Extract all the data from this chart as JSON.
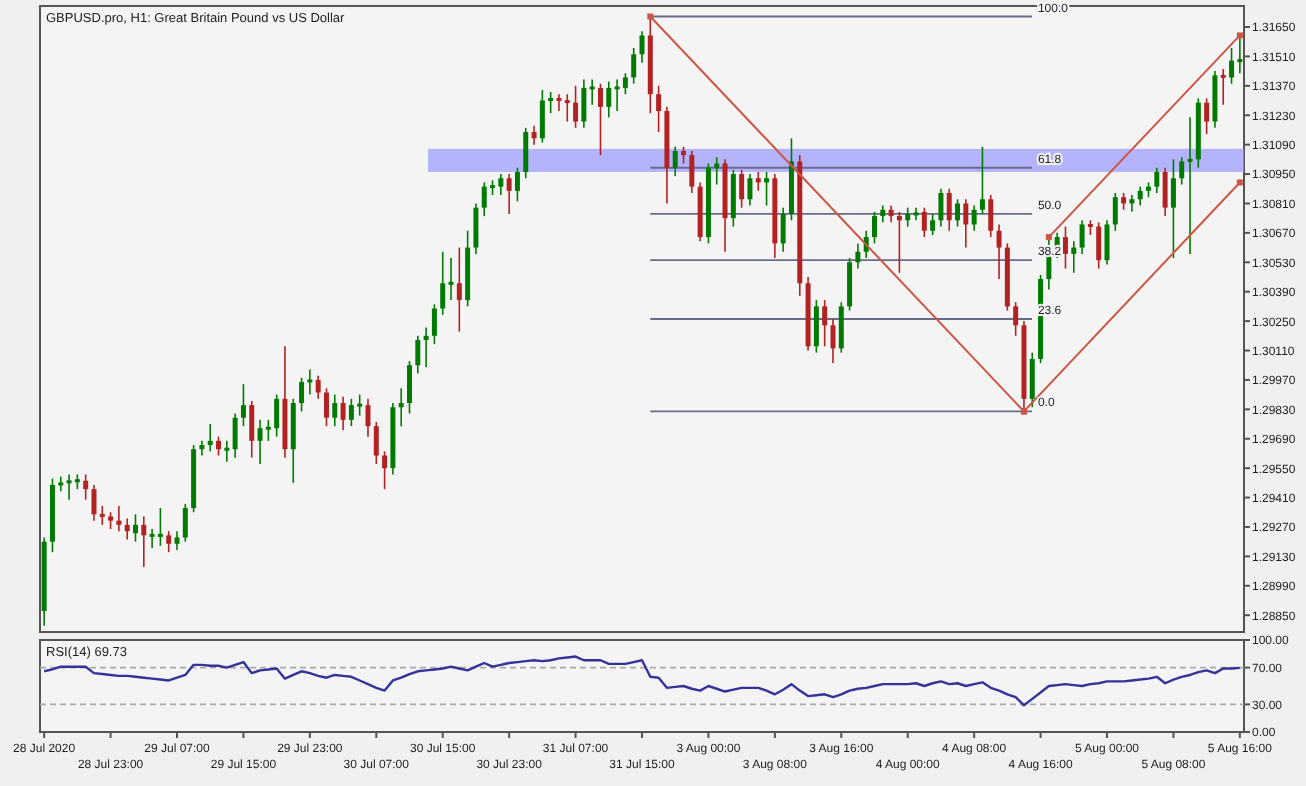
{
  "chart_data": [
    {
      "type": "candlestick",
      "title": "GBPUSD.pro, H1: Great Britain Pound vs US Dollar",
      "tick_labels": "y",
      "ylim": [
        1.2877,
        1.3175
      ],
      "categories": [
        null,
        null,
        null,
        null,
        null,
        null,
        null,
        null,
        null,
        null,
        null,
        null,
        null,
        null,
        null,
        null,
        null,
        null,
        null,
        null,
        null,
        null,
        null,
        null,
        null,
        null,
        null,
        null,
        null,
        null,
        null,
        null,
        null,
        null,
        null,
        null,
        null,
        null,
        null,
        null,
        null,
        null,
        null,
        null,
        null,
        null,
        null,
        null,
        null,
        null,
        null,
        null,
        null,
        null,
        null,
        null,
        null,
        null,
        null,
        null,
        null,
        null,
        null,
        null,
        null,
        null,
        null,
        null,
        null,
        null,
        null,
        null,
        null,
        null,
        null,
        null,
        null,
        null,
        null,
        null,
        null,
        null,
        null,
        null,
        null,
        null,
        null,
        null,
        null,
        null,
        null,
        null,
        null,
        null,
        null,
        null,
        null,
        null,
        null,
        null,
        null,
        null,
        null,
        null,
        null,
        null,
        null,
        null,
        null,
        null,
        null,
        null,
        null,
        null,
        null,
        null,
        null,
        null,
        null,
        null,
        null,
        null,
        null,
        null,
        null,
        null,
        null,
        null,
        null,
        null,
        null,
        null,
        null,
        null,
        null,
        null,
        null,
        null,
        null,
        null,
        null,
        null,
        null,
        null,
        null
      ],
      "yticks": [
        {
          "value": 1.3165,
          "label": "1.31650"
        },
        {
          "value": 1.3151,
          "label": "1.31510"
        },
        {
          "value": 1.3137,
          "label": "1.31370"
        },
        {
          "value": 1.3123,
          "label": "1.31230"
        },
        {
          "value": 1.3109,
          "label": "1.31090"
        },
        {
          "value": 1.3095,
          "label": "1.30950"
        },
        {
          "value": 1.3081,
          "label": "1.30810"
        },
        {
          "value": 1.3067,
          "label": "1.30670"
        },
        {
          "value": 1.3053,
          "label": "1.30530"
        },
        {
          "value": 1.3039,
          "label": "1.30390"
        },
        {
          "value": 1.3025,
          "label": "1.30250"
        },
        {
          "value": 1.3011,
          "label": "1.30110"
        },
        {
          "value": 1.2997,
          "label": "1.29970"
        },
        {
          "value": 1.2983,
          "label": "1.29830"
        },
        {
          "value": 1.2969,
          "label": "1.29690"
        },
        {
          "value": 1.2955,
          "label": "1.29550"
        },
        {
          "value": 1.2941,
          "label": "1.29410"
        },
        {
          "value": 1.2927,
          "label": "1.29270"
        },
        {
          "value": 1.2913,
          "label": "1.29130"
        },
        {
          "value": 1.2899,
          "label": "1.28990"
        },
        {
          "value": 1.2885,
          "label": "1.28850"
        }
      ],
      "bands": [
        {
          "axis": "y",
          "from": 1.3096,
          "to": 1.3107,
          "color": "#9999ff"
        }
      ],
      "ref_lines": [
        {
          "axis": "y",
          "value": 1.317,
          "color": "#6a6a8a"
        },
        {
          "axis": "y",
          "value": 1.3098,
          "color": "#6a6a8a"
        },
        {
          "axis": "y",
          "value": 1.3076,
          "color": "#6a6a8a"
        },
        {
          "axis": "y",
          "value": 1.3054,
          "color": "#6a6a8a"
        },
        {
          "axis": "y",
          "value": 1.3026,
          "color": "#6a6a8a"
        },
        {
          "axis": "y",
          "value": 1.2982,
          "color": "#6a6a8a"
        }
      ],
      "annotations": [
        "100.0",
        "61.8",
        "50.0",
        "38.2",
        "23.6",
        "0.0"
      ],
      "series": [
        {
          "colors": [
            "#007a00",
            "#007a00",
            "#007a00",
            "#007a00",
            "#007a00",
            "#b22222",
            "#b22222",
            "#b22222",
            "#b22222",
            "#b22222",
            "#b22222",
            "#007a00",
            "#b22222",
            "#007a00",
            "#007a00",
            "#b22222",
            "#007a00",
            "#007a00",
            "#007a00",
            "#007a00",
            "#007a00",
            "#b22222",
            "#007a00",
            "#007a00",
            "#007a00",
            "#b22222",
            "#007a00",
            "#007a00",
            "#007a00",
            "#b22222",
            "#007a00",
            "#007a00",
            "#007a00",
            "#b22222",
            "#b22222",
            "#007a00",
            "#b22222",
            "#007a00",
            "#007a00",
            "#b22222",
            "#b22222",
            "#b22222",
            "#007a00",
            "#007a00",
            "#007a00",
            "#007a00",
            "#007a00",
            "#007a00",
            "#007a00",
            "#007a00",
            "#b22222",
            "#007a00",
            "#007a00",
            "#007a00",
            "#007a00",
            "#007a00",
            "#b22222",
            "#007a00",
            "#007a00",
            "#b22222",
            "#007a00",
            "#007a00",
            "#b22222",
            "#b22222",
            "#b22222",
            "#007a00",
            "#007a00",
            "#b22222",
            "#007a00",
            "#007a00",
            "#007a00",
            "#007a00",
            "#007a00",
            "#b22222",
            "#b22222",
            "#b22222",
            "#007a00",
            "#b22222",
            "#b22222",
            "#b22222",
            "#007a00",
            "#007a00",
            "#b22222",
            "#007a00",
            "#b22222",
            "#007a00",
            "#b22222",
            "#007a00",
            "#b22222",
            "#007a00",
            "#007a00",
            "#b22222",
            "#b22222",
            "#007a00",
            "#b22222",
            "#b22222",
            "#007a00",
            "#007a00",
            "#007a00",
            "#007a00",
            "#007a00",
            "#007a00",
            "#b22222",
            "#b22222",
            "#007a00",
            "#007a00",
            "#b22222",
            "#007a00",
            "#007a00",
            "#b22222",
            "#007a00",
            "#b22222",
            "#007a00",
            "#007a00",
            "#b22222",
            "#b22222",
            "#b22222",
            "#b22222",
            "#b22222",
            "#007a00",
            "#007a00",
            "#007a00",
            "#007a00",
            "#b22222",
            "#007a00",
            "#007a00",
            "#b22222",
            "#b22222",
            "#007a00",
            "#007a00",
            "#b22222",
            "#007a00",
            "#007a00",
            "#007a00",
            "#007a00",
            "#b22222",
            "#007a00",
            "#007a00",
            "#007a00",
            "#007a00",
            "#b22222",
            "#007a00",
            "#b22222",
            "#007a00",
            "#007a00"
          ],
          "ohlc": [
            [
              1.2887,
              1.2922,
              1.288,
              1.292
            ],
            [
              1.292,
              1.295,
              1.2915,
              1.2947
            ],
            [
              1.2947,
              1.2951,
              1.2944,
              1.2948
            ],
            [
              1.2948,
              1.2952,
              1.294,
              1.2949
            ],
            [
              1.2949,
              1.2952,
              1.2945,
              1.2949
            ],
            [
              1.2949,
              1.2952,
              1.294,
              1.2945
            ],
            [
              1.2945,
              1.2947,
              1.293,
              1.2933
            ],
            [
              1.2933,
              1.2937,
              1.2928,
              1.2932
            ],
            [
              1.2932,
              1.2934,
              1.2926,
              1.293
            ],
            [
              1.293,
              1.2937,
              1.2925,
              1.2928
            ],
            [
              1.2928,
              1.2931,
              1.2921,
              1.2925
            ],
            [
              1.2924,
              1.2933,
              1.292,
              1.2928
            ],
            [
              1.2928,
              1.2932,
              1.2908,
              1.2923
            ],
            [
              1.2923,
              1.2926,
              1.2917,
              1.2923
            ],
            [
              1.2923,
              1.2936,
              1.2918,
              1.2923
            ],
            [
              1.2923,
              1.2925,
              1.2915,
              1.2919
            ],
            [
              1.2919,
              1.2925,
              1.2916,
              1.2922
            ],
            [
              1.2922,
              1.2938,
              1.292,
              1.2936
            ],
            [
              1.2936,
              1.2966,
              1.2934,
              1.2964
            ],
            [
              1.2964,
              1.2968,
              1.2961,
              1.2966
            ],
            [
              1.2966,
              1.2976,
              1.2963,
              1.2968
            ],
            [
              1.2968,
              1.297,
              1.2961,
              1.2964
            ],
            [
              1.2964,
              1.2968,
              1.2958,
              1.2964
            ],
            [
              1.2964,
              1.2981,
              1.296,
              1.2979
            ],
            [
              1.2979,
              1.2995,
              1.2975,
              1.2985
            ],
            [
              1.2985,
              1.2987,
              1.296,
              1.2968
            ],
            [
              1.2968,
              1.2978,
              1.2957,
              1.2974
            ],
            [
              1.2974,
              1.2978,
              1.2968,
              1.2974
            ],
            [
              1.2974,
              1.299,
              1.297,
              1.2988
            ],
            [
              1.2988,
              1.3013,
              1.296,
              1.2964
            ],
            [
              1.2964,
              1.2988,
              1.2948,
              1.2986
            ],
            [
              1.2986,
              1.2998,
              1.2982,
              1.2996
            ],
            [
              1.2996,
              1.3002,
              1.299,
              1.2997
            ],
            [
              1.2997,
              1.2999,
              1.2988,
              1.2991
            ],
            [
              1.2991,
              1.2993,
              1.2975,
              1.2979
            ],
            [
              1.2979,
              1.299,
              1.2975,
              1.2986
            ],
            [
              1.2986,
              1.2989,
              1.2973,
              1.2978
            ],
            [
              1.2978,
              1.2988,
              1.2975,
              1.2985
            ],
            [
              1.2985,
              1.299,
              1.298,
              1.2985
            ],
            [
              1.2985,
              1.2988,
              1.297,
              1.2975
            ],
            [
              1.2975,
              1.2977,
              1.2957,
              1.2961
            ],
            [
              1.2961,
              1.2963,
              1.2945,
              1.2955
            ],
            [
              1.2955,
              1.2986,
              1.2952,
              1.2984
            ],
            [
              1.2984,
              1.2993,
              1.2975,
              1.2986
            ],
            [
              1.2986,
              1.3006,
              1.2981,
              1.3004
            ],
            [
              1.3004,
              1.3018,
              1.3,
              1.3016
            ],
            [
              1.3016,
              1.3022,
              1.3003,
              1.3018
            ],
            [
              1.3018,
              1.3033,
              1.3014,
              1.3031
            ],
            [
              1.3031,
              1.3058,
              1.3028,
              1.3043
            ],
            [
              1.3043,
              1.3055,
              1.3035,
              1.3043
            ],
            [
              1.3043,
              1.306,
              1.302,
              1.3035
            ],
            [
              1.3035,
              1.3068,
              1.3032,
              1.306
            ],
            [
              1.306,
              1.3081,
              1.3057,
              1.3079
            ],
            [
              1.3079,
              1.3091,
              1.3075,
              1.3089
            ],
            [
              1.3089,
              1.3092,
              1.3085,
              1.3089
            ],
            [
              1.3089,
              1.3095,
              1.3085,
              1.3093
            ],
            [
              1.3093,
              1.3095,
              1.3076,
              1.3087
            ],
            [
              1.3087,
              1.3098,
              1.3082,
              1.3096
            ],
            [
              1.3096,
              1.3117,
              1.3093,
              1.3115
            ],
            [
              1.3115,
              1.3118,
              1.3109,
              1.3112
            ],
            [
              1.3112,
              1.3135,
              1.311,
              1.313
            ],
            [
              1.313,
              1.3134,
              1.3124,
              1.3131
            ],
            [
              1.3131,
              1.3133,
              1.3125,
              1.313
            ],
            [
              1.313,
              1.3133,
              1.312,
              1.3129
            ],
            [
              1.3129,
              1.3137,
              1.3117,
              1.312
            ],
            [
              1.312,
              1.314,
              1.3117,
              1.3136
            ],
            [
              1.3136,
              1.314,
              1.3128,
              1.3136
            ],
            [
              1.3136,
              1.3138,
              1.3104,
              1.3127
            ],
            [
              1.3127,
              1.3139,
              1.3122,
              1.3136
            ],
            [
              1.3136,
              1.314,
              1.3125,
              1.3136
            ],
            [
              1.3136,
              1.3143,
              1.3133,
              1.3141
            ],
            [
              1.3141,
              1.3155,
              1.3138,
              1.3152
            ],
            [
              1.3152,
              1.3163,
              1.3148,
              1.3161
            ],
            [
              1.3161,
              1.317,
              1.3124,
              1.3133
            ],
            [
              1.3133,
              1.3137,
              1.3115,
              1.3125
            ],
            [
              1.3125,
              1.3127,
              1.3081,
              1.3098
            ],
            [
              1.3098,
              1.3108,
              1.3094,
              1.3106
            ],
            [
              1.3106,
              1.3108,
              1.31,
              1.3104
            ],
            [
              1.3104,
              1.3106,
              1.3086,
              1.3089
            ],
            [
              1.3089,
              1.3091,
              1.3063,
              1.3065
            ],
            [
              1.3065,
              1.31,
              1.3062,
              1.3098
            ],
            [
              1.3098,
              1.3103,
              1.309,
              1.31
            ],
            [
              1.31,
              1.3102,
              1.3058,
              1.3074
            ],
            [
              1.3074,
              1.3097,
              1.307,
              1.3095
            ],
            [
              1.3095,
              1.3097,
              1.3079,
              1.3083
            ],
            [
              1.3083,
              1.3095,
              1.308,
              1.3093
            ],
            [
              1.3093,
              1.3096,
              1.3087,
              1.3091
            ],
            [
              1.3091,
              1.3096,
              1.308,
              1.3093
            ],
            [
              1.3093,
              1.3095,
              1.3055,
              1.3062
            ],
            [
              1.3062,
              1.3079,
              1.3058,
              1.3076
            ],
            [
              1.3076,
              1.3112,
              1.3073,
              1.3101
            ],
            [
              1.3101,
              1.3104,
              1.3037,
              1.3043
            ],
            [
              1.3043,
              1.3046,
              1.3011,
              1.3013
            ],
            [
              1.3013,
              1.3035,
              1.301,
              1.3032
            ],
            [
              1.3032,
              1.3035,
              1.3013,
              1.3023
            ],
            [
              1.3023,
              1.3026,
              1.3005,
              1.3012
            ],
            [
              1.3012,
              1.3034,
              1.301,
              1.3032
            ],
            [
              1.3032,
              1.3055,
              1.303,
              1.3053
            ],
            [
              1.3053,
              1.3062,
              1.305,
              1.3058
            ],
            [
              1.3058,
              1.3068,
              1.3055,
              1.3065
            ],
            [
              1.3065,
              1.3077,
              1.3062,
              1.3075
            ],
            [
              1.3075,
              1.308,
              1.3072,
              1.3078
            ],
            [
              1.3078,
              1.308,
              1.3072,
              1.3075
            ],
            [
              1.3075,
              1.3077,
              1.3048,
              1.3073
            ],
            [
              1.3073,
              1.3079,
              1.307,
              1.3076
            ],
            [
              1.3076,
              1.3079,
              1.3073,
              1.3076
            ],
            [
              1.3077,
              1.3079,
              1.3065,
              1.3068
            ],
            [
              1.3068,
              1.3076,
              1.3066,
              1.3073
            ],
            [
              1.3073,
              1.3088,
              1.307,
              1.3086
            ],
            [
              1.3086,
              1.3088,
              1.3068,
              1.3073
            ],
            [
              1.3073,
              1.3083,
              1.307,
              1.3081
            ],
            [
              1.3081,
              1.3083,
              1.306,
              1.3071
            ],
            [
              1.3071,
              1.308,
              1.3068,
              1.3078
            ],
            [
              1.3078,
              1.3108,
              1.3076,
              1.3083
            ],
            [
              1.3083,
              1.3085,
              1.3065,
              1.3068
            ],
            [
              1.3068,
              1.3071,
              1.3045,
              1.306
            ],
            [
              1.306,
              1.3062,
              1.303,
              1.3032
            ],
            [
              1.3032,
              1.3034,
              1.3018,
              1.3023
            ],
            [
              1.3023,
              1.3025,
              1.2982,
              1.2988
            ],
            [
              1.2988,
              1.301,
              1.2984,
              1.3007
            ],
            [
              1.3007,
              1.3047,
              1.3005,
              1.3045
            ],
            [
              1.3045,
              1.3065,
              1.304,
              1.3058
            ],
            [
              1.3058,
              1.3067,
              1.3055,
              1.3065
            ],
            [
              1.3065,
              1.307,
              1.305,
              1.3057
            ],
            [
              1.3057,
              1.3063,
              1.3048,
              1.306
            ],
            [
              1.306,
              1.3073,
              1.3057,
              1.3071
            ],
            [
              1.3071,
              1.3073,
              1.3066,
              1.307
            ],
            [
              1.307,
              1.3072,
              1.305,
              1.3054
            ],
            [
              1.3054,
              1.3073,
              1.3052,
              1.3071
            ],
            [
              1.3071,
              1.3086,
              1.3068,
              1.3084
            ],
            [
              1.3084,
              1.3086,
              1.3078,
              1.3081
            ],
            [
              1.3081,
              1.3085,
              1.3077,
              1.3083
            ],
            [
              1.3083,
              1.3089,
              1.308,
              1.3087
            ],
            [
              1.3087,
              1.3091,
              1.3084,
              1.3089
            ],
            [
              1.3089,
              1.3098,
              1.3086,
              1.3096
            ],
            [
              1.3096,
              1.3098,
              1.3075,
              1.3079
            ],
            [
              1.3079,
              1.3102,
              1.3055,
              1.3093
            ],
            [
              1.3093,
              1.3103,
              1.309,
              1.3101
            ],
            [
              1.3101,
              1.3122,
              1.3057,
              1.3102
            ],
            [
              1.3102,
              1.3131,
              1.3098,
              1.3129
            ],
            [
              1.3129,
              1.3131,
              1.3114,
              1.312
            ],
            [
              1.312,
              1.3144,
              1.3117,
              1.3142
            ],
            [
              1.3142,
              1.3145,
              1.3128,
              1.3141
            ],
            [
              1.3141,
              1.3155,
              1.3138,
              1.3149
            ],
            [
              1.3149,
              1.316,
              1.3143,
              1.3149
            ]
          ]
        },
        {
          "type": "line",
          "color": "#cc5544",
          "marker": "square",
          "values": [
            null,
            null,
            null,
            null,
            null,
            null,
            null,
            null,
            null,
            null,
            null,
            null,
            null,
            null,
            null,
            null,
            null,
            null,
            null,
            null,
            null,
            null,
            null,
            null,
            null,
            null,
            null,
            null,
            null,
            null,
            null,
            null,
            null,
            null,
            null,
            null,
            null,
            null,
            null,
            null,
            null,
            null,
            null,
            null,
            null,
            null,
            null,
            null,
            null,
            null,
            null,
            null,
            null,
            null,
            null,
            null,
            null,
            null,
            null,
            null,
            null,
            null,
            null,
            null,
            null,
            null,
            null,
            null,
            null,
            null,
            null,
            null,
            null,
            1.317,
            null,
            null,
            null,
            null,
            null,
            null,
            null,
            null,
            null,
            null,
            null,
            null,
            null,
            null,
            null,
            null,
            null,
            null,
            null,
            null,
            null,
            null,
            null,
            null,
            null,
            null,
            null,
            null,
            null,
            null,
            null,
            null,
            null,
            null,
            null,
            null,
            null,
            null,
            null,
            null,
            null,
            null,
            null,
            null,
            1.2982,
            null,
            null,
            null,
            null,
            null,
            null,
            null,
            null,
            null,
            null,
            null,
            null,
            null,
            null,
            null,
            null,
            null,
            null,
            null,
            null,
            null,
            null,
            null,
            null,
            null,
            null
          ]
        },
        {
          "type": "line",
          "color": "#cc5544",
          "marker": "square",
          "values": [
            null,
            null,
            null,
            null,
            null,
            null,
            null,
            null,
            null,
            null,
            null,
            null,
            null,
            null,
            null,
            null,
            null,
            null,
            null,
            null,
            null,
            null,
            null,
            null,
            null,
            null,
            null,
            null,
            null,
            null,
            null,
            null,
            null,
            null,
            null,
            null,
            null,
            null,
            null,
            null,
            null,
            null,
            null,
            null,
            null,
            null,
            null,
            null,
            null,
            null,
            null,
            null,
            null,
            null,
            null,
            null,
            null,
            null,
            null,
            null,
            null,
            null,
            null,
            null,
            null,
            null,
            null,
            null,
            null,
            null,
            null,
            null,
            null,
            null,
            null,
            null,
            null,
            null,
            null,
            null,
            null,
            null,
            null,
            null,
            null,
            null,
            null,
            null,
            null,
            null,
            null,
            null,
            null,
            null,
            null,
            null,
            null,
            null,
            null,
            null,
            null,
            null,
            null,
            null,
            null,
            null,
            null,
            null,
            null,
            null,
            null,
            null,
            null,
            null,
            null,
            null,
            null,
            null,
            null,
            null,
            null,
            1.3065,
            null,
            null,
            null,
            null,
            null,
            null,
            null,
            null,
            null,
            null,
            null,
            null,
            null,
            null,
            null,
            null,
            null,
            null,
            null,
            null,
            null,
            null,
            1.3161
          ]
        },
        {
          "type": "line",
          "color": "#cc5544",
          "marker": "square",
          "values": [
            null,
            null,
            null,
            null,
            null,
            null,
            null,
            null,
            null,
            null,
            null,
            null,
            null,
            null,
            null,
            null,
            null,
            null,
            null,
            null,
            null,
            null,
            null,
            null,
            null,
            null,
            null,
            null,
            null,
            null,
            null,
            null,
            null,
            null,
            null,
            null,
            null,
            null,
            null,
            null,
            null,
            null,
            null,
            null,
            null,
            null,
            null,
            null,
            null,
            null,
            null,
            null,
            null,
            null,
            null,
            null,
            null,
            null,
            null,
            null,
            null,
            null,
            null,
            null,
            null,
            null,
            null,
            null,
            null,
            null,
            null,
            null,
            null,
            null,
            null,
            null,
            null,
            null,
            null,
            null,
            null,
            null,
            null,
            null,
            null,
            null,
            null,
            null,
            null,
            null,
            null,
            null,
            null,
            null,
            null,
            null,
            null,
            null,
            null,
            null,
            null,
            null,
            null,
            null,
            null,
            null,
            null,
            null,
            null,
            null,
            null,
            null,
            null,
            null,
            null,
            null,
            null,
            null,
            1.2982,
            null,
            null,
            null,
            null,
            null,
            null,
            null,
            null,
            null,
            null,
            null,
            null,
            null,
            null,
            null,
            null,
            null,
            null,
            null,
            null,
            null,
            null,
            null,
            null,
            null,
            1.3091
          ]
        }
      ]
    },
    {
      "type": "line",
      "title": "RSI(14) 69.73",
      "ylim": [
        0,
        100
      ],
      "categories": [
        "28 Jul 2020",
        null,
        null,
        null,
        null,
        null,
        null,
        null,
        "28 Jul 23:00",
        null,
        null,
        null,
        null,
        null,
        null,
        null,
        "29 Jul 07:00",
        null,
        null,
        null,
        null,
        null,
        null,
        null,
        "29 Jul 15:00",
        null,
        null,
        null,
        null,
        null,
        null,
        null,
        "29 Jul 23:00",
        null,
        null,
        null,
        null,
        null,
        null,
        null,
        "30 Jul 07:00",
        null,
        null,
        null,
        null,
        null,
        null,
        null,
        "30 Jul 15:00",
        null,
        null,
        null,
        null,
        null,
        null,
        null,
        "30 Jul 23:00",
        null,
        null,
        null,
        null,
        null,
        null,
        null,
        "31 Jul 07:00",
        null,
        null,
        null,
        null,
        null,
        null,
        null,
        "31 Jul 15:00",
        null,
        null,
        null,
        null,
        null,
        null,
        null,
        "3 Aug 00:00",
        null,
        null,
        null,
        null,
        null,
        null,
        null,
        "3 Aug 08:00",
        null,
        null,
        null,
        null,
        null,
        null,
        null,
        "3 Aug 16:00",
        null,
        null,
        null,
        null,
        null,
        null,
        null,
        "4 Aug 00:00",
        null,
        null,
        null,
        null,
        null,
        null,
        null,
        "4 Aug 08:00",
        null,
        null,
        null,
        null,
        null,
        null,
        null,
        "4 Aug 16:00",
        null,
        null,
        null,
        null,
        null,
        null,
        null,
        "5 Aug 00:00",
        null,
        null,
        null,
        null,
        null,
        null,
        null,
        "5 Aug 08:00",
        null,
        null,
        null,
        null,
        null,
        null,
        null,
        "5 Aug 16:00"
      ],
      "yticks": [
        {
          "value": 100,
          "label": "100.00"
        },
        {
          "value": 70,
          "label": "70.00"
        },
        {
          "value": 30,
          "label": "30.00"
        },
        {
          "value": 0,
          "label": "0.00"
        }
      ],
      "ref_lines": [
        {
          "axis": "y",
          "value": 70,
          "color": "#aaaaaa",
          "line_style": "dashed"
        },
        {
          "axis": "y",
          "value": 30,
          "color": "#aaaaaa",
          "line_style": "dashed"
        }
      ],
      "series": [
        {
          "color": "#333399",
          "values": [
            66,
            68,
            71,
            71,
            71,
            71,
            64,
            63,
            62,
            61,
            61,
            60,
            59,
            58,
            57,
            56,
            59,
            62,
            73,
            73,
            72,
            72,
            70,
            73,
            76,
            64,
            67,
            68,
            69,
            58,
            62,
            66,
            64,
            61,
            59,
            62,
            61,
            60,
            56,
            52,
            48,
            45,
            56,
            59,
            63,
            66,
            67,
            68,
            69,
            71,
            69,
            67,
            71,
            75,
            71,
            73,
            75,
            76,
            77,
            78,
            77,
            78,
            80,
            81,
            82,
            78,
            78,
            78,
            74,
            74,
            74,
            76,
            78,
            60,
            59,
            48,
            49,
            50,
            47,
            45,
            50,
            47,
            44,
            46,
            48,
            48,
            48,
            45,
            41,
            46,
            52,
            45,
            39,
            40,
            41,
            38,
            41,
            45,
            47,
            48,
            50,
            52,
            52,
            52,
            52,
            53,
            50,
            53,
            55,
            52,
            53,
            50,
            52,
            54,
            48,
            45,
            41,
            38,
            29,
            36,
            43,
            50,
            51,
            52,
            51,
            50,
            52,
            53,
            55,
            55,
            55,
            56,
            57,
            58,
            60,
            53,
            57,
            60,
            62,
            65,
            67,
            64,
            69,
            69,
            69.73
          ]
        }
      ]
    }
  ]
}
